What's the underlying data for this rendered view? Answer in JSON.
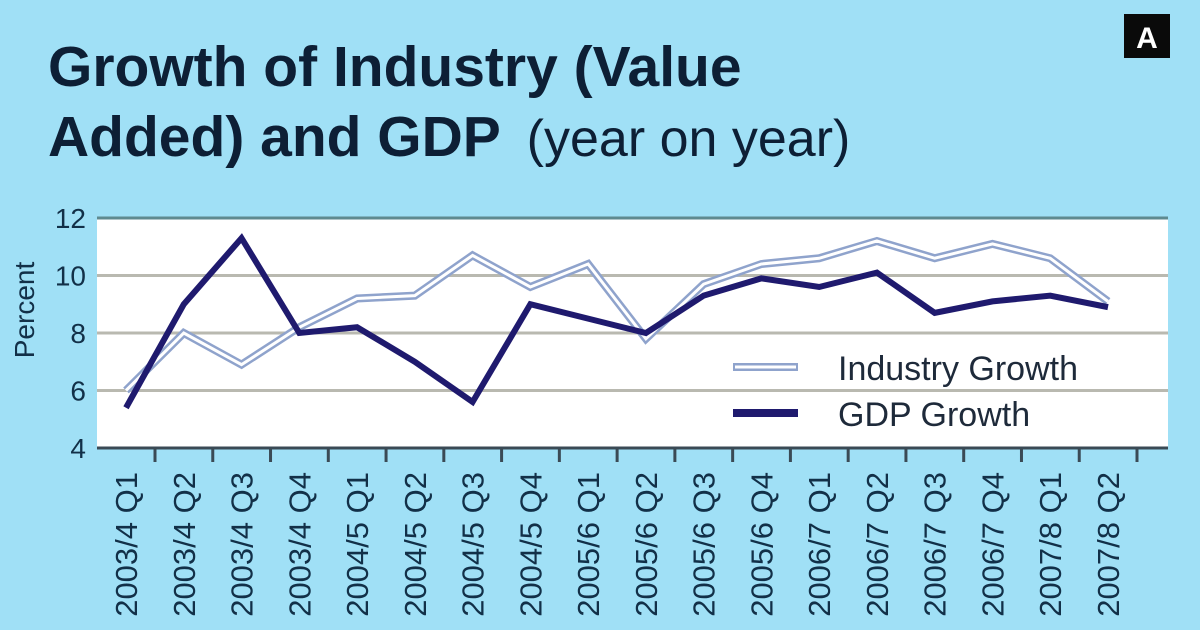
{
  "badge": "A",
  "chart_data": {
    "type": "line",
    "title_line1": "Growth of Industry (Value",
    "title_line2_bold": "Added) and GDP",
    "title_line2_normal": "(year on year)",
    "xlabel": "",
    "ylabel": "Percent",
    "ylim": [
      4,
      12
    ],
    "yticks": [
      "4",
      "6",
      "8",
      "10",
      "12"
    ],
    "grid": true,
    "legend_position": "bottom-right",
    "categories": [
      "2003/4 Q1",
      "2003/4 Q2",
      "2003/4 Q3",
      "2003/4 Q4",
      "2004/5 Q1",
      "2004/5 Q2",
      "2004/5 Q3",
      "2004/5 Q4",
      "2005/6 Q1",
      "2005/6 Q2",
      "2005/6 Q3",
      "2005/6 Q4",
      "2006/7 Q1",
      "2006/7 Q2",
      "2006/7 Q3",
      "2006/7 Q4",
      "2007/8 Q1",
      "2007/8 Q2"
    ],
    "series": [
      {
        "name": "Industry Growth",
        "color": "#8fa3cc",
        "values": [
          6.0,
          8.0,
          6.9,
          8.2,
          9.2,
          9.3,
          10.7,
          9.6,
          10.4,
          7.8,
          9.7,
          10.4,
          10.6,
          11.2,
          10.6,
          11.1,
          10.6,
          9.1
        ]
      },
      {
        "name": "GDP Growth",
        "color": "#1f1a6e",
        "values": [
          5.4,
          9.0,
          11.3,
          8.0,
          8.2,
          7.0,
          5.6,
          9.0,
          8.5,
          8.0,
          9.3,
          9.9,
          9.6,
          10.1,
          8.7,
          9.1,
          9.3,
          8.9
        ]
      }
    ]
  }
}
